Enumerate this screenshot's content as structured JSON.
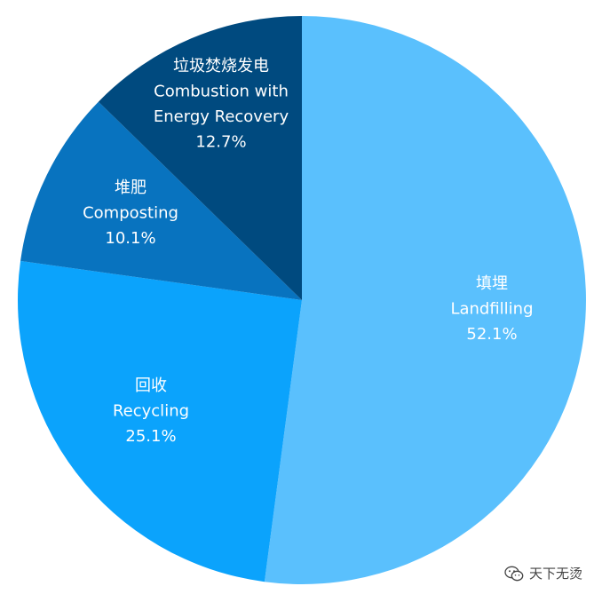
{
  "chart_data": {
    "type": "pie",
    "title": "",
    "start_angle_deg": 0,
    "direction": "clockwise",
    "slices": [
      {
        "label_cn": "填埋",
        "label_en": "Landfilling",
        "value": 52.1,
        "value_text": "52.1%",
        "color": "#5ac0fd"
      },
      {
        "label_cn": "回收",
        "label_en": "Recycling",
        "value": 25.1,
        "value_text": "25.1%",
        "color": "#0ba3fc"
      },
      {
        "label_cn": "堆肥",
        "label_en": "Composting",
        "value": 10.1,
        "value_text": "10.1%",
        "color": "#0873bf"
      },
      {
        "label_cn": "垃圾焚烧发电",
        "label_en_lines": [
          "Combustion with",
          "Energy Recovery"
        ],
        "value": 12.7,
        "value_text": "12.7%",
        "color": "#004a7f"
      }
    ]
  },
  "watermark": {
    "icon": "wechat-icon",
    "text": "天下无烫"
  }
}
